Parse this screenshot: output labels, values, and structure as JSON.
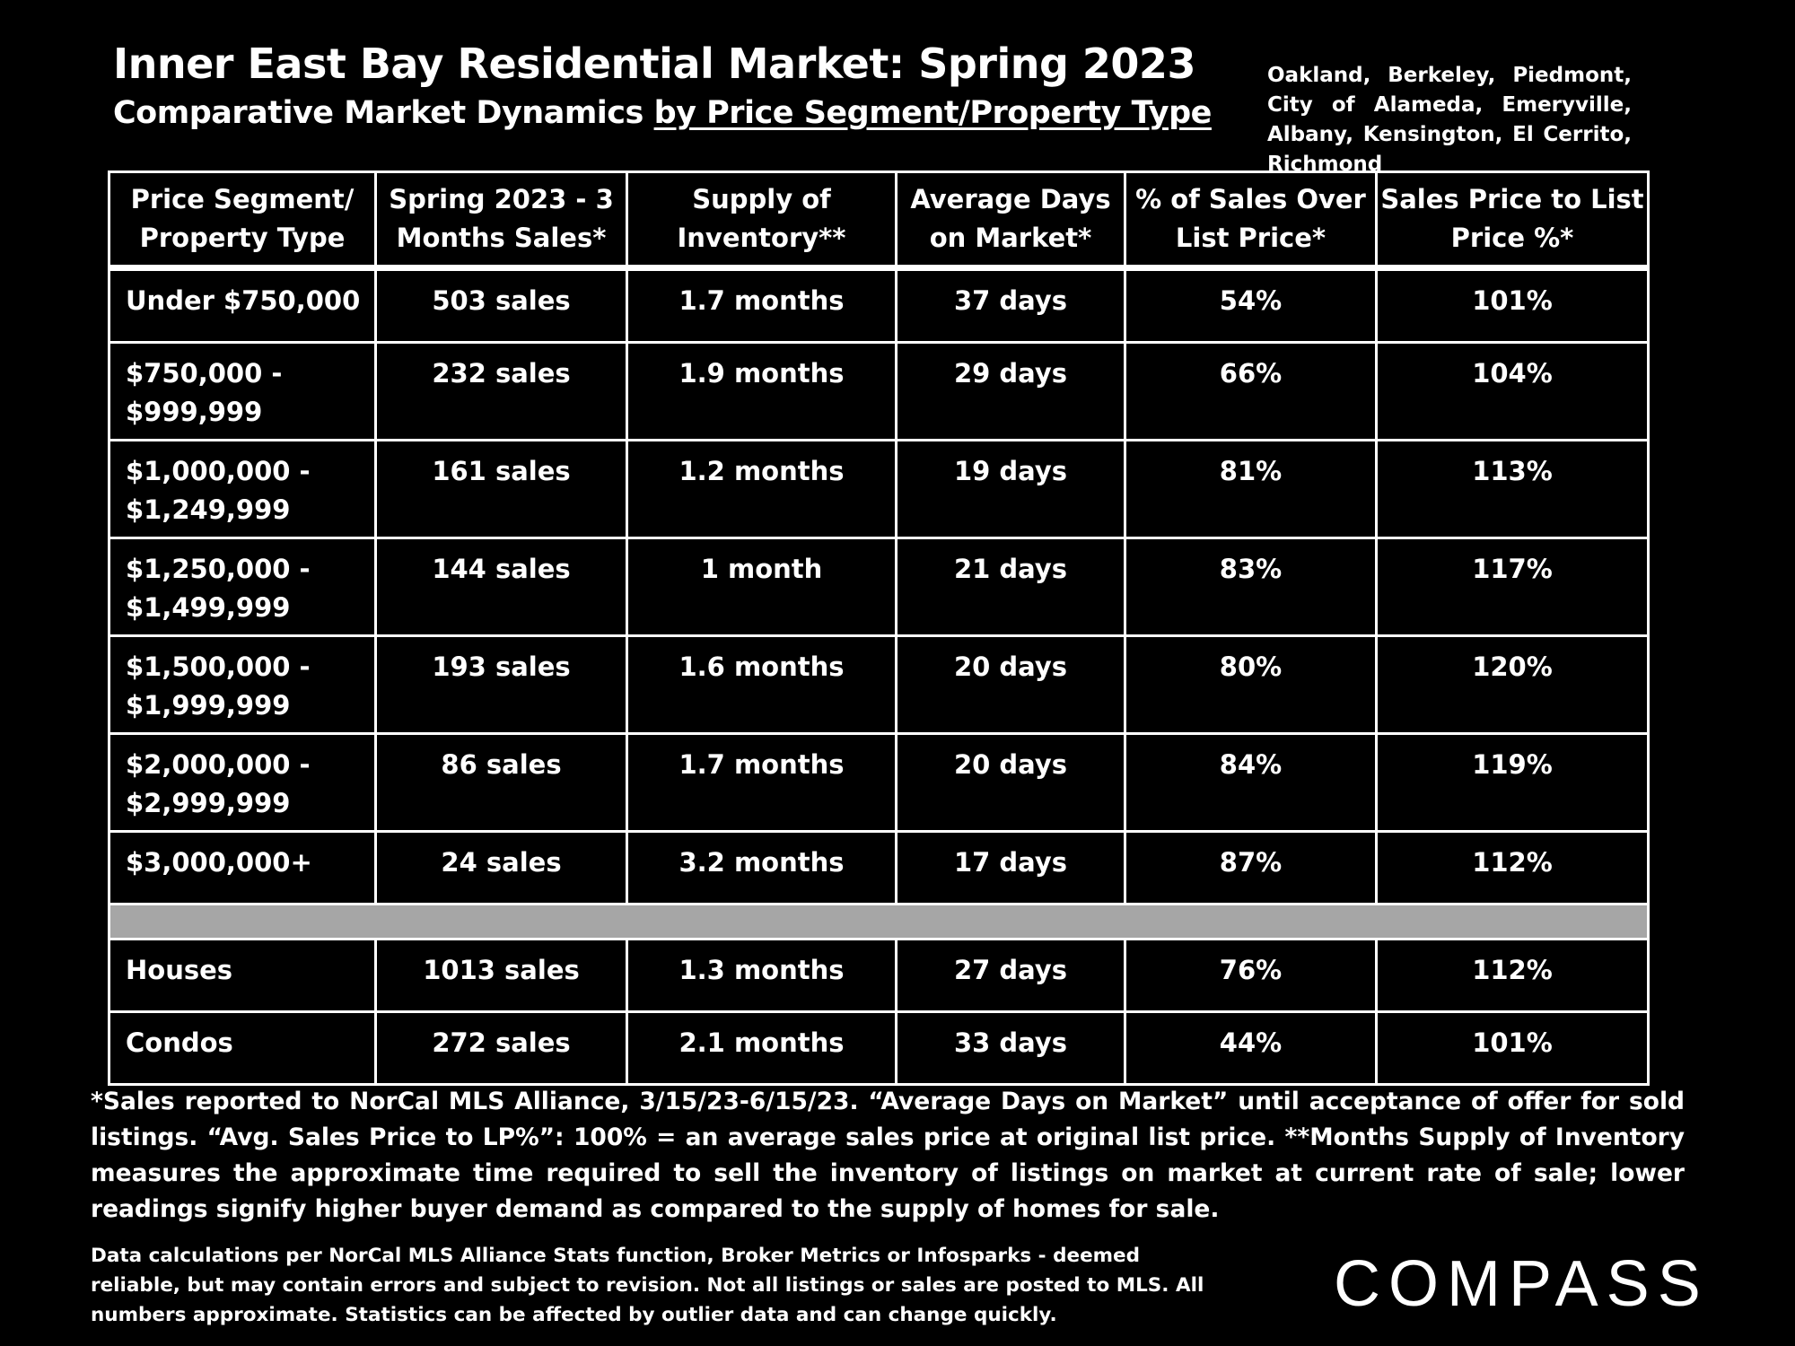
{
  "header": {
    "title": "Inner East Bay Residential Market:  Spring 2023",
    "subtitle_plain": "Comparative Market Dynamics ",
    "subtitle_underlined": "by Price Segment/Property Type",
    "cities": "Oakland, Berkeley, Piedmont, City of Alameda, Emeryville, Albany, Kensington, El Cerrito, Richmond"
  },
  "table": {
    "columns": [
      "Price Segment/ Property Type",
      "Spring 2023 - 3 Months Sales*",
      "Supply of Inventory**",
      "Average Days on Market*",
      "% of Sales Over List Price*",
      "Sales Price to List Price %*"
    ],
    "price_rows": [
      {
        "segment": "Under $750,000",
        "sales": "503 sales",
        "supply": "1.7 months",
        "dom": "37 days",
        "over_list": "54%",
        "sp_lp": "101%"
      },
      {
        "segment": "$750,000 - $999,999",
        "sales": "232 sales",
        "supply": "1.9 months",
        "dom": "29 days",
        "over_list": "66%",
        "sp_lp": "104%"
      },
      {
        "segment": "$1,000,000 - $1,249,999",
        "sales": "161 sales",
        "supply": "1.2 months",
        "dom": "19 days",
        "over_list": "81%",
        "sp_lp": "113%"
      },
      {
        "segment": "$1,250,000 - $1,499,999",
        "sales": "144 sales",
        "supply": "1 month",
        "dom": "21 days",
        "over_list": "83%",
        "sp_lp": "117%"
      },
      {
        "segment": "$1,500,000 - $1,999,999",
        "sales": "193 sales",
        "supply": "1.6 months",
        "dom": "20 days",
        "over_list": "80%",
        "sp_lp": "120%"
      },
      {
        "segment": "$2,000,000 - $2,999,999",
        "sales": "86 sales",
        "supply": "1.7 months",
        "dom": "20 days",
        "over_list": "84%",
        "sp_lp": "119%"
      },
      {
        "segment": "$3,000,000+",
        "sales": "24 sales",
        "supply": "3.2 months",
        "dom": "17 days",
        "over_list": "87%",
        "sp_lp": "112%"
      }
    ],
    "type_rows": [
      {
        "segment": "Houses",
        "sales": "1013 sales",
        "supply": "1.3 months",
        "dom": "27 days",
        "over_list": "76%",
        "sp_lp": "112%"
      },
      {
        "segment": "Condos",
        "sales": "272 sales",
        "supply": "2.1 months",
        "dom": "33 days",
        "over_list": "44%",
        "sp_lp": "101%"
      }
    ]
  },
  "footnotes": {
    "main": "*Sales reported to NorCal MLS Alliance, 3/15/23-6/15/23. “Average Days on Market” until acceptance of offer for sold listings. “Avg. Sales Price to LP%”: 100% = an average sales price at original list price. **Months Supply of Inventory measures the approximate time required to sell the inventory of listings on market at current rate of sale; lower readings signify higher buyer demand as compared to the supply of homes for sale.",
    "disclaimer": "Data calculations per NorCal MLS Alliance Stats function, Broker Metrics or Infosparks - deemed reliable, but may contain errors and subject to revision.  Not all listings or sales are posted to MLS. All numbers approximate. Statistics can be affected by outlier data and can change quickly."
  },
  "brand": {
    "logo_text": "COMPASS"
  }
}
